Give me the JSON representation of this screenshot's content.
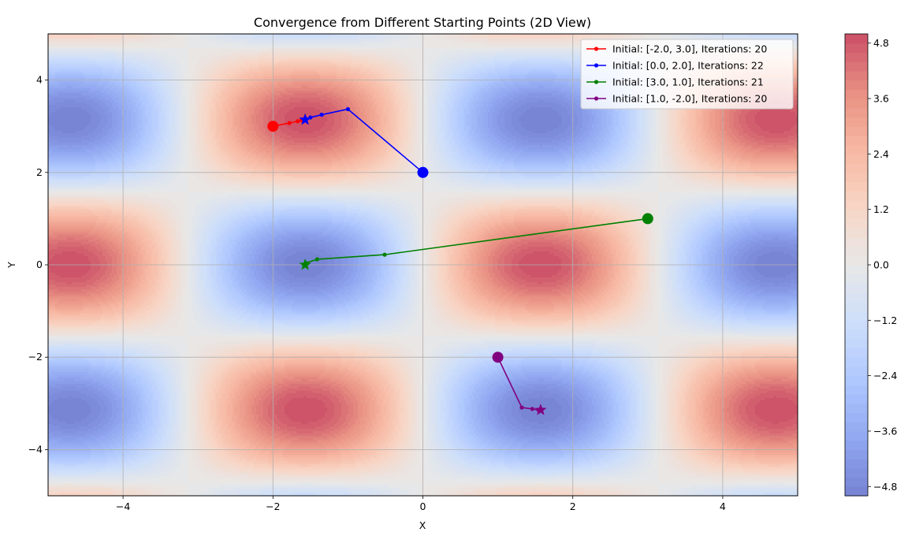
{
  "chart_data": {
    "type": "line",
    "title": "Convergence from Different Starting Points (2D View)",
    "xlabel": "X",
    "ylabel": "Y",
    "xlim": [
      -5,
      5
    ],
    "ylim": [
      -5,
      5
    ],
    "xticks": [
      -4,
      -2,
      0,
      2,
      4
    ],
    "yticks": [
      -4,
      -2,
      0,
      2,
      4
    ],
    "grid": true,
    "legend_position": "top-right",
    "background": {
      "type": "filled-contour",
      "colormap": "coolwarm",
      "vmin": -5,
      "vmax": 5
    },
    "colorbar": {
      "ticks": [
        4.8,
        3.6,
        2.4,
        1.2,
        0.0,
        -1.2,
        -2.4,
        -3.6,
        -4.8
      ]
    },
    "series": [
      {
        "name": "Initial: [-2.0, 3.0], Iterations: 20",
        "color": "#ff0000",
        "x": [
          -2.0,
          -1.78,
          -1.67,
          -1.62,
          -1.59,
          -1.578,
          -1.573,
          -1.571
        ],
        "y": [
          3.0,
          3.07,
          3.11,
          3.13,
          3.138,
          3.14,
          3.141,
          3.1416
        ]
      },
      {
        "name": "Initial: [0.0, 2.0], Iterations: 22",
        "color": "#0000ff",
        "x": [
          0.0,
          -1.0,
          -1.35,
          -1.5,
          -1.56,
          -1.571
        ],
        "y": [
          2.0,
          3.37,
          3.25,
          3.19,
          3.155,
          3.1416
        ]
      },
      {
        "name": "Initial: [3.0, 1.0], Iterations: 21",
        "color": "#008000",
        "x": [
          3.0,
          -0.51,
          -1.41,
          -1.56,
          -1.571
        ],
        "y": [
          1.0,
          0.22,
          0.12,
          0.04,
          0.0
        ]
      },
      {
        "name": "Initial: [1.0, -2.0], Iterations: 20",
        "color": "#800080",
        "x": [
          1.0,
          1.32,
          1.46,
          1.54,
          1.571
        ],
        "y": [
          -2.0,
          -3.09,
          -3.12,
          -3.14,
          -3.1416
        ]
      }
    ]
  }
}
